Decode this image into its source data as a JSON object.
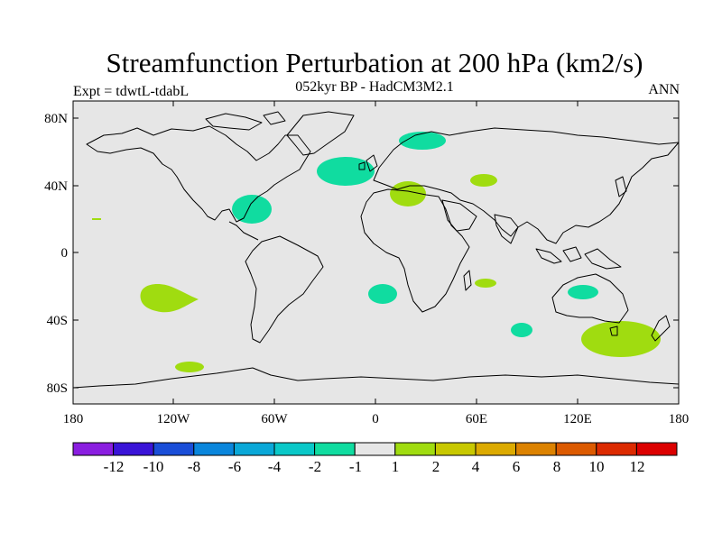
{
  "figure": {
    "title": "Streamfunction Perturbation at 200 hPa (km2/s)",
    "subtitle": "052kyr BP - HadCM3M2.1",
    "experiment": "Expt = tdwtL-tdabL",
    "period": "ANN"
  },
  "map": {
    "lat_ticks": [
      "80N",
      "40N",
      "0",
      "40S",
      "80S"
    ],
    "lon_ticks": [
      "180",
      "120W",
      "60W",
      "0",
      "60E",
      "120E",
      "180"
    ],
    "background_color": "#e6e6e6"
  },
  "colorbar": {
    "labels": [
      "-12",
      "-10",
      "-8",
      "-6",
      "-4",
      "-2",
      "-1",
      "1",
      "2",
      "4",
      "6",
      "8",
      "10",
      "12"
    ],
    "colors": [
      "#8a1ee0",
      "#3a14d8",
      "#1a4ed8",
      "#0a86dc",
      "#0aa8d8",
      "#0ac8c8",
      "#10dca0",
      "#e6e6e6",
      "#a0dc10",
      "#c8c800",
      "#dcaa00",
      "#dc8200",
      "#dc5a00",
      "#dc2a00",
      "#dc0000"
    ]
  },
  "chart_data": {
    "type": "map",
    "title": "Streamfunction Perturbation at 200 hPa (km2/s)",
    "projection": "cylindrical equidistant",
    "lon_range": [
      -180,
      180
    ],
    "lat_range": [
      -90,
      90
    ],
    "contour_levels": [
      -12,
      -10,
      -8,
      -6,
      -4,
      -2,
      -1,
      1,
      2,
      4,
      6,
      8,
      10,
      12
    ],
    "regions": [
      {
        "name": "North Atlantic",
        "lon": -17,
        "lat": 50,
        "sign": "negative",
        "range": "-2 to -1"
      },
      {
        "name": "Gulf of Mexico / Caribbean",
        "lon": -73,
        "lat": 27,
        "sign": "negative",
        "range": "-2 to -1"
      },
      {
        "name": "Scandinavia",
        "lon": 28,
        "lat": 67,
        "sign": "negative",
        "range": "-2 to -1"
      },
      {
        "name": "Mediterranean",
        "lon": 20,
        "lat": 35,
        "sign": "positive",
        "range": "1 to 2"
      },
      {
        "name": "Central Asia",
        "lon": 65,
        "lat": 44,
        "sign": "positive",
        "range": "1 to 2"
      },
      {
        "name": "South Atlantic",
        "lon": 4,
        "lat": -24,
        "sign": "negative",
        "range": "-2 to -1"
      },
      {
        "name": "SW Indian Ocean",
        "lon": 66,
        "lat": -17,
        "sign": "positive",
        "range": "1 to 2"
      },
      {
        "name": "Southern Indian Ocean",
        "lon": 87,
        "lat": -46,
        "sign": "negative",
        "range": "-2 to -1"
      },
      {
        "name": "Australia",
        "lon": 127,
        "lat": -24,
        "sign": "negative",
        "range": "-2 to -1"
      },
      {
        "name": "South of Australia",
        "lon": 147,
        "lat": -51,
        "sign": "positive",
        "range": "1 to 2"
      },
      {
        "name": "South Pacific",
        "lon": -125,
        "lat": -28,
        "sign": "positive",
        "range": "1 to 2"
      },
      {
        "name": "Pacific off Antarctica",
        "lon": -111,
        "lat": -67,
        "sign": "positive",
        "range": "1 to 2"
      }
    ]
  }
}
